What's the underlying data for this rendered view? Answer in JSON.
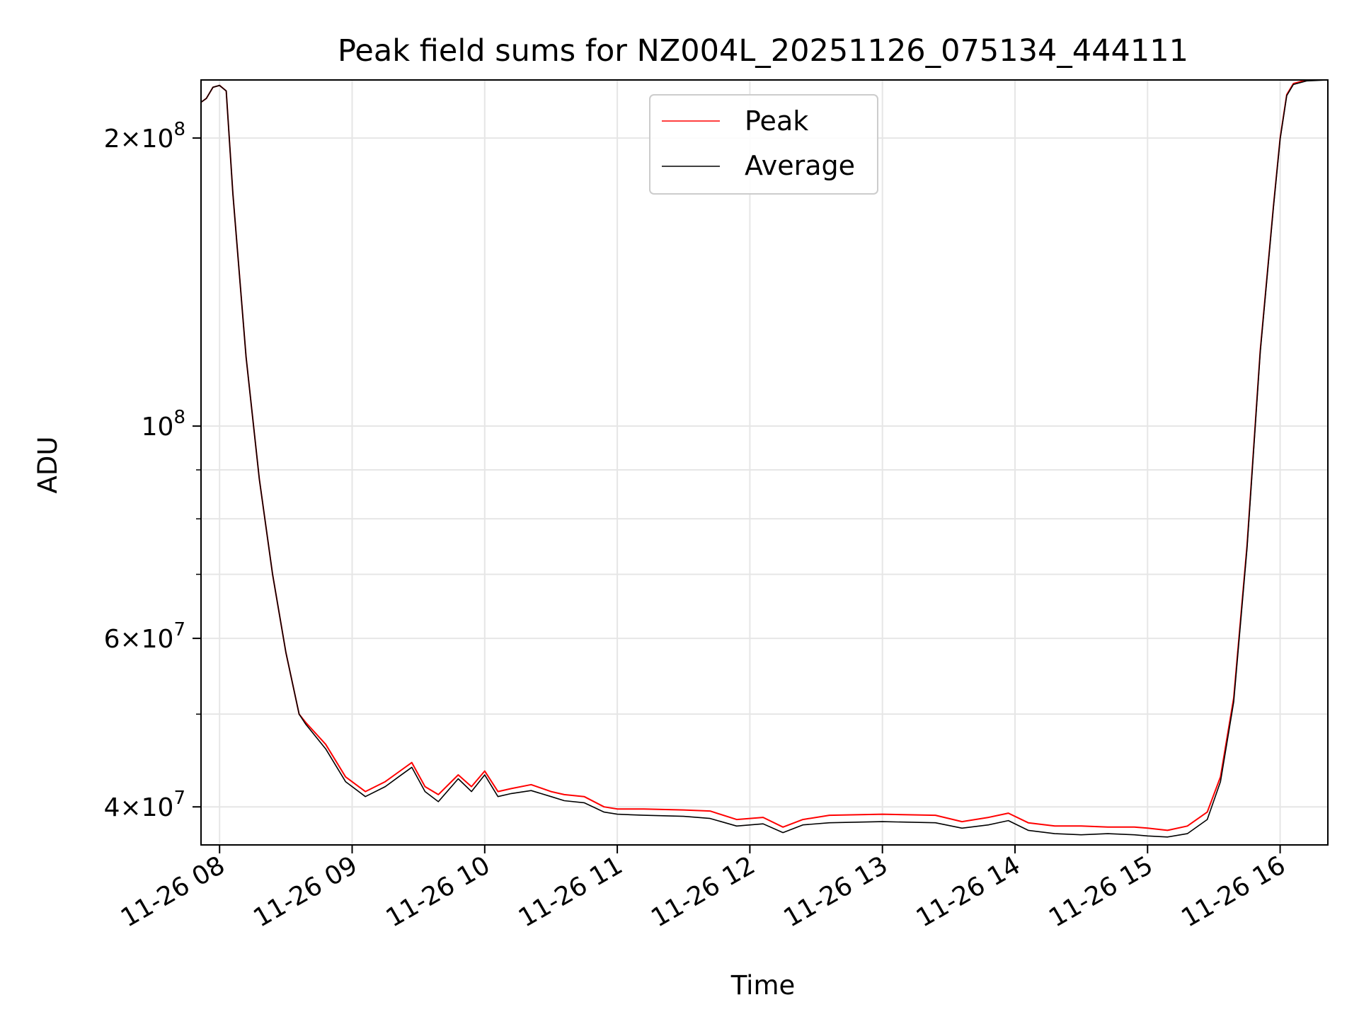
{
  "chart_data": {
    "type": "line",
    "title": "Peak field sums for NZ004L_20251126_075134_444111",
    "xlabel": "Time",
    "ylabel": "ADU",
    "yscale": "log",
    "ylim": [
      36500000,
      230000000
    ],
    "xlim_hours": [
      7.86,
      16.36
    ],
    "grid": true,
    "legend_position": "top-center",
    "x_ticks": [
      {
        "hour": 8,
        "label": "11-26 08"
      },
      {
        "hour": 9,
        "label": "11-26 09"
      },
      {
        "hour": 10,
        "label": "11-26 10"
      },
      {
        "hour": 11,
        "label": "11-26 11"
      },
      {
        "hour": 12,
        "label": "11-26 12"
      },
      {
        "hour": 13,
        "label": "11-26 13"
      },
      {
        "hour": 14,
        "label": "11-26 14"
      },
      {
        "hour": 15,
        "label": "11-26 15"
      },
      {
        "hour": 16,
        "label": "11-26 16"
      }
    ],
    "y_ticks": [
      {
        "value": 40000000,
        "mantissa": "4",
        "exp": "7"
      },
      {
        "value": 60000000,
        "mantissa": "6",
        "exp": "7"
      },
      {
        "value": 100000000,
        "mantissa": "",
        "exp": "8"
      },
      {
        "value": 200000000,
        "mantissa": "2",
        "exp": "8"
      }
    ],
    "y_minor_ticks": [
      50000000,
      70000000,
      80000000,
      90000000
    ],
    "series": [
      {
        "name": "Peak",
        "color": "#ff0000",
        "x_hours": [
          7.86,
          7.9,
          7.95,
          8.0,
          8.05,
          8.1,
          8.2,
          8.3,
          8.4,
          8.5,
          8.6,
          8.65,
          8.8,
          8.95,
          9.1,
          9.25,
          9.35,
          9.45,
          9.55,
          9.65,
          9.8,
          9.9,
          10.0,
          10.1,
          10.2,
          10.35,
          10.5,
          10.6,
          10.75,
          10.9,
          11.0,
          11.2,
          11.5,
          11.7,
          11.9,
          12.1,
          12.25,
          12.4,
          12.6,
          13.0,
          13.4,
          13.6,
          13.8,
          13.95,
          14.1,
          14.3,
          14.5,
          14.7,
          14.9,
          15.0,
          15.15,
          15.3,
          15.45,
          15.55,
          15.65,
          15.75,
          15.85,
          15.95,
          16.0,
          16.05,
          16.1,
          16.2,
          16.36
        ],
        "values": [
          218000000,
          220000000,
          226000000,
          227000000,
          224000000,
          175000000,
          118000000,
          88000000,
          70000000,
          58000000,
          50000000,
          49000000,
          46500000,
          43000000,
          41500000,
          42500000,
          43500000,
          44500000,
          42000000,
          41200000,
          43200000,
          42000000,
          43600000,
          41500000,
          41800000,
          42200000,
          41500000,
          41200000,
          41000000,
          40000000,
          39800000,
          39800000,
          39700000,
          39600000,
          38800000,
          39000000,
          38100000,
          38800000,
          39200000,
          39300000,
          39200000,
          38600000,
          39000000,
          39400000,
          38500000,
          38200000,
          38200000,
          38100000,
          38100000,
          38000000,
          37800000,
          38200000,
          39500000,
          43000000,
          52000000,
          75000000,
          120000000,
          170000000,
          200000000,
          222000000,
          228000000,
          230000000,
          230000000
        ]
      },
      {
        "name": "Average",
        "color": "#000000",
        "x_hours": [
          7.86,
          7.9,
          7.95,
          8.0,
          8.05,
          8.1,
          8.2,
          8.3,
          8.4,
          8.5,
          8.6,
          8.65,
          8.8,
          8.95,
          9.1,
          9.25,
          9.35,
          9.45,
          9.55,
          9.65,
          9.8,
          9.9,
          10.0,
          10.1,
          10.2,
          10.35,
          10.5,
          10.6,
          10.75,
          10.9,
          11.0,
          11.2,
          11.5,
          11.7,
          11.9,
          12.1,
          12.25,
          12.4,
          12.6,
          13.0,
          13.4,
          13.6,
          13.8,
          13.95,
          14.1,
          14.3,
          14.5,
          14.7,
          14.9,
          15.0,
          15.15,
          15.3,
          15.45,
          15.55,
          15.65,
          15.75,
          15.85,
          15.95,
          16.0,
          16.05,
          16.1,
          16.2,
          16.36
        ],
        "values": [
          218000000,
          220000000,
          226000000,
          227000000,
          224000000,
          175000000,
          118000000,
          88000000,
          70000000,
          58000000,
          50000000,
          48800000,
          46000000,
          42500000,
          41000000,
          42000000,
          43000000,
          44000000,
          41500000,
          40500000,
          42800000,
          41500000,
          43200000,
          41000000,
          41300000,
          41600000,
          41000000,
          40600000,
          40400000,
          39500000,
          39300000,
          39200000,
          39100000,
          38900000,
          38200000,
          38400000,
          37600000,
          38300000,
          38500000,
          38600000,
          38500000,
          38000000,
          38300000,
          38700000,
          37800000,
          37500000,
          37400000,
          37500000,
          37400000,
          37300000,
          37200000,
          37500000,
          38800000,
          42500000,
          51500000,
          74500000,
          119500000,
          169500000,
          199500000,
          221500000,
          227500000,
          229500000,
          230000000
        ]
      }
    ]
  }
}
